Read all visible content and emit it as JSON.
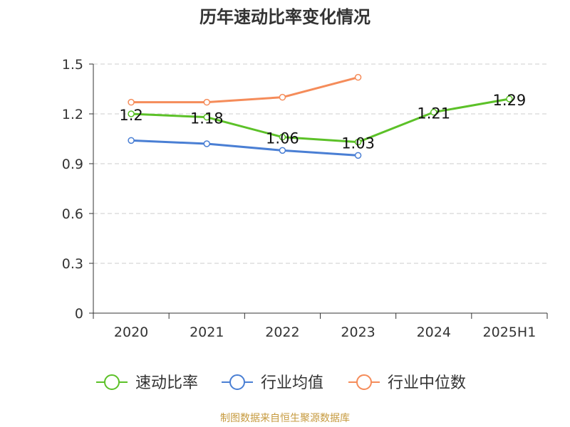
{
  "chart_data": {
    "type": "line",
    "title": "历年速动比率变化情况",
    "categories": [
      "2020",
      "2021",
      "2022",
      "2023",
      "2024",
      "2025H1"
    ],
    "y_ticks": [
      "0",
      "0.3",
      "0.6",
      "0.9",
      "1.2",
      "1.5"
    ],
    "ylim": [
      0,
      1.5
    ],
    "grid": true,
    "legend_position": "bottom",
    "series": [
      {
        "name": "速动比率",
        "values": [
          1.2,
          1.18,
          1.06,
          1.03,
          1.21,
          1.29
        ],
        "labels": [
          "1.2",
          "1.18",
          "1.06",
          "1.03",
          "1.21",
          "1.29"
        ],
        "color": "#5cc128"
      },
      {
        "name": "行业均值",
        "values": [
          1.04,
          1.02,
          0.98,
          0.95,
          null,
          null
        ],
        "color": "#4a7fd4"
      },
      {
        "name": "行业中位数",
        "values": [
          1.27,
          1.27,
          1.3,
          1.42,
          null,
          null
        ],
        "color": "#f58c5a"
      }
    ]
  },
  "source": "制图数据来自恒生聚源数据库"
}
